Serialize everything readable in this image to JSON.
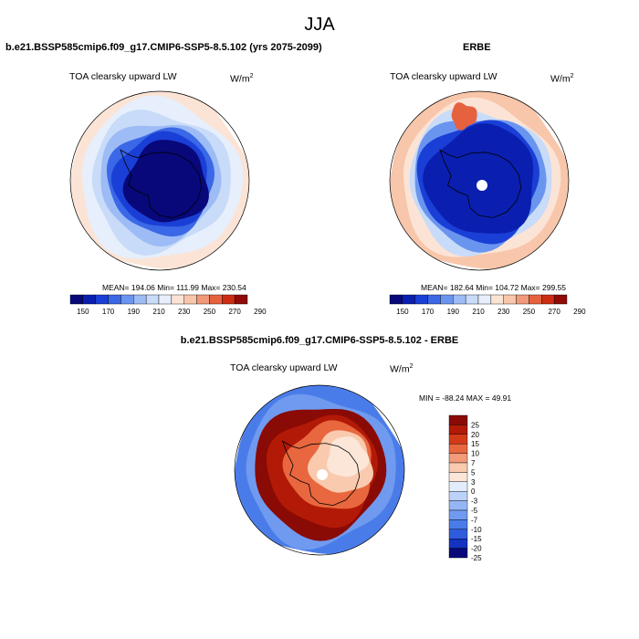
{
  "page_title": "JJA",
  "colors": {
    "scale": [
      "#08087a",
      "#0a1fb0",
      "#1a3fd6",
      "#3a68e6",
      "#6a95ef",
      "#9dbcf5",
      "#c8dbf9",
      "#e6effb",
      "#fbe4d6",
      "#f8c6aa",
      "#f1997a",
      "#e6623f",
      "#cc2d13",
      "#900a07"
    ],
    "diff_scale": [
      "#08087a",
      "#1333c0",
      "#2f5bdd",
      "#4a7ce9",
      "#6f9aef",
      "#94b6f4",
      "#bdd2f8",
      "#e2ecfb",
      "#fbe6d8",
      "#f9caae",
      "#f39a78",
      "#e8673f",
      "#d23a18",
      "#b21a07",
      "#8a0a05"
    ],
    "land": "#000000"
  },
  "chart_data": [
    {
      "type": "heatmap",
      "projection": "south-polar-stereographic",
      "title": "b.e21.BSSP585cmip6.f09_g17.CMIP6-SSP5-8.5.102 (yrs 2075-2099)",
      "variable": "TOA clearsky upward LW",
      "units_base": "W/m",
      "units_exp": "2",
      "stats_text": "MEAN= 194.06  Min= 111.99  Max= 230.54",
      "mean": 194.06,
      "min": 111.99,
      "max": 230.54,
      "colorbar_ticks": [
        "150",
        "170",
        "190",
        "210",
        "230",
        "250",
        "270",
        "290"
      ],
      "colorbar_levels": [
        140,
        150,
        160,
        170,
        180,
        190,
        200,
        210,
        220,
        230,
        240,
        250,
        260,
        270,
        280,
        290
      ],
      "value_profile": {
        "continent_interior": 120,
        "coast": 150,
        "sea_ice": 185,
        "midlat_edge": 230
      }
    },
    {
      "type": "heatmap",
      "projection": "south-polar-stereographic",
      "title": "ERBE",
      "variable": "TOA clearsky upward LW",
      "units_base": "W/m",
      "units_exp": "2",
      "stats_text": "MEAN= 182.64  Min= 104.72  Max= 299.55",
      "mean": 182.64,
      "min": 104.72,
      "max": 299.55,
      "colorbar_ticks": [
        "150",
        "170",
        "190",
        "210",
        "230",
        "250",
        "270",
        "290"
      ],
      "colorbar_levels": [
        140,
        150,
        160,
        170,
        180,
        190,
        200,
        210,
        220,
        230,
        240,
        250,
        260,
        270,
        280,
        290
      ],
      "value_profile": {
        "continent_interior": 150,
        "coast": 160,
        "sea_ice": 175,
        "midlat_edge": 245
      }
    },
    {
      "type": "heatmap",
      "projection": "south-polar-stereographic",
      "title": "b.e21.BSSP585cmip6.f09_g17.CMIP6-SSP5-8.5.102 - ERBE",
      "variable": "TOA clearsky upward LW",
      "units_base": "W/m",
      "units_exp": "2",
      "stats_text": "MIN = -88.24 MAX =  49.91",
      "min": -88.24,
      "max": 49.91,
      "colorbar_ticks": [
        "25",
        "20",
        "15",
        "10",
        "7",
        "5",
        "3",
        "0",
        "-3",
        "-5",
        "-7",
        "-10",
        "-15",
        "-20",
        "-25"
      ]
    }
  ]
}
